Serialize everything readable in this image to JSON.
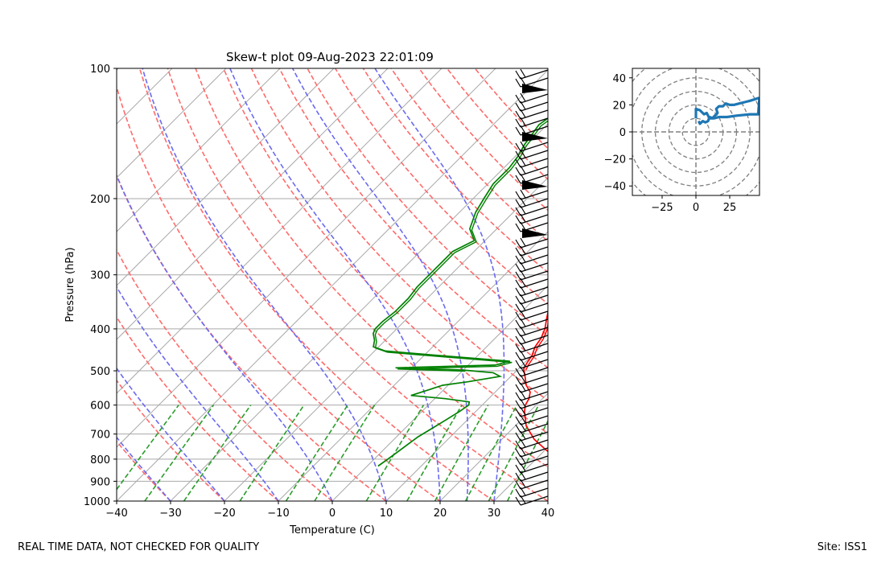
{
  "chart_data": [
    {
      "type": "line",
      "subtype": "skew-t log-p",
      "title": "Skew-t plot 09-Aug-2023 22:01:09",
      "xlabel": "Temperature (C)",
      "ylabel": "Pressure (hPa)",
      "xlim": [
        -40,
        40
      ],
      "ylim": [
        1000,
        100
      ],
      "y_scale": "log",
      "x_ticks": [
        -40,
        -30,
        -20,
        -10,
        0,
        10,
        20,
        30,
        40
      ],
      "y_ticks": [
        1000,
        900,
        800,
        700,
        600,
        500,
        400,
        300,
        200,
        100
      ],
      "grid": true,
      "series": [
        {
          "role": "temperature",
          "color": "#ff0000",
          "points": [
            [
              35.5,
              830
            ],
            [
              34,
              800
            ],
            [
              30,
              760
            ],
            [
              26,
              720
            ],
            [
              22,
              670
            ],
            [
              19,
              620
            ],
            [
              18,
              600
            ],
            [
              17.5,
              580
            ],
            [
              16.5,
              560
            ],
            [
              14.5,
              540
            ],
            [
              13,
              520
            ],
            [
              11,
              495
            ],
            [
              10.5,
              480
            ],
            [
              10,
              460
            ],
            [
              9,
              440
            ],
            [
              8.5,
              420
            ],
            [
              7.5,
              400
            ],
            [
              6,
              380
            ],
            [
              4.5,
              360
            ],
            [
              3,
              340
            ],
            [
              1.5,
              320
            ],
            [
              0,
              300
            ],
            [
              -1.5,
              285
            ],
            [
              -2.5,
              270
            ],
            [
              -3,
              255
            ],
            [
              -2,
              240
            ],
            [
              -2.5,
              225
            ],
            [
              -2.5,
              210
            ],
            [
              -3,
              200
            ],
            [
              -4,
              185
            ],
            [
              -5,
              170
            ],
            [
              -6,
              160
            ],
            [
              -7,
              150
            ],
            [
              -8,
              140
            ],
            [
              -9,
              130
            ],
            [
              -7,
              120
            ],
            [
              -3,
              112
            ],
            [
              1,
              106
            ],
            [
              3,
              100
            ]
          ]
        },
        {
          "role": "dewpoint",
          "color": "#008000",
          "points": [
            [
              2,
              830
            ],
            [
              2.5,
              800
            ],
            [
              3,
              770
            ],
            [
              3.5,
              740
            ],
            [
              4,
              710
            ],
            [
              5,
              680
            ],
            [
              6,
              650
            ],
            [
              7,
              620
            ],
            [
              7.5,
              600
            ],
            [
              7,
              590
            ],
            [
              2,
              580
            ],
            [
              -5,
              570
            ],
            [
              -3,
              555
            ],
            [
              -1,
              540
            ],
            [
              3,
              530
            ],
            [
              8,
              515
            ],
            [
              6,
              505
            ],
            [
              0,
              498
            ],
            [
              -13,
              492
            ],
            [
              5,
              485
            ],
            [
              7,
              475
            ],
            [
              -8,
              460
            ],
            [
              -18,
              450
            ],
            [
              -21,
              440
            ],
            [
              -22,
              425
            ],
            [
              -23.5,
              410
            ],
            [
              -24,
              400
            ],
            [
              -24,
              385
            ],
            [
              -23.5,
              365
            ],
            [
              -23.5,
              340
            ],
            [
              -24,
              320
            ],
            [
              -24,
              300
            ],
            [
              -24,
              280
            ],
            [
              -24,
              265
            ],
            [
              -22,
              250
            ],
            [
              -25,
              235
            ],
            [
              -27,
              215
            ],
            [
              -28,
              200
            ],
            [
              -29,
              185
            ],
            [
              -29,
              170
            ],
            [
              -29.5,
              160
            ],
            [
              -30.5,
              150
            ],
            [
              -31,
              142
            ],
            [
              -31.5,
              135
            ],
            [
              -31,
              130
            ],
            [
              -30,
              120
            ],
            [
              -30,
              110
            ],
            [
              -31,
              103
            ],
            [
              -31.5,
              100
            ]
          ]
        }
      ],
      "background_lines": [
        "isotherms",
        "dry adiabats",
        "moist adiabats",
        "mixing ratio lines"
      ],
      "wind_barbs": "right margin, 100–1000 hPa",
      "colors": {
        "temperature": "#ff0000",
        "dewpoint": "#008000",
        "dry_adiabat": "#ff6a6a",
        "moist_adiabat": "#6a6af0",
        "mixing_ratio": "#2a9d2a",
        "grid": "#a9a9a9"
      }
    },
    {
      "type": "line",
      "subtype": "hodograph",
      "xlim": [
        -47,
        47
      ],
      "ylim": [
        -47,
        47
      ],
      "x_ticks": [
        -25,
        0,
        25
      ],
      "y_ticks": [
        -40,
        -20,
        0,
        20,
        40
      ],
      "rings": [
        10,
        20,
        30,
        40,
        50,
        60,
        70
      ],
      "color": "#1f77b4",
      "points": [
        [
          0,
          10
        ],
        [
          0,
          17
        ],
        [
          3,
          16
        ],
        [
          6,
          13
        ],
        [
          8,
          14
        ],
        [
          10,
          10
        ],
        [
          12,
          10
        ],
        [
          14,
          12
        ],
        [
          16,
          14
        ],
        [
          15,
          17
        ],
        [
          17,
          19
        ],
        [
          20,
          19
        ],
        [
          22,
          21
        ],
        [
          25,
          20
        ],
        [
          28,
          20
        ],
        [
          32,
          21
        ],
        [
          36,
          22
        ],
        [
          40,
          23
        ],
        [
          43,
          24
        ],
        [
          46,
          25
        ],
        [
          47,
          25
        ],
        [
          46,
          13
        ],
        [
          40,
          13
        ],
        [
          30,
          12
        ],
        [
          23,
          11
        ],
        [
          17,
          11
        ],
        [
          13,
          10
        ],
        [
          10,
          11
        ],
        [
          9,
          8
        ],
        [
          7,
          7
        ],
        [
          5,
          8
        ],
        [
          3,
          6
        ],
        [
          2,
          8
        ]
      ]
    }
  ],
  "footer": {
    "left": "REAL TIME DATA, NOT CHECKED FOR QUALITY",
    "right": "Site: ISS1"
  }
}
